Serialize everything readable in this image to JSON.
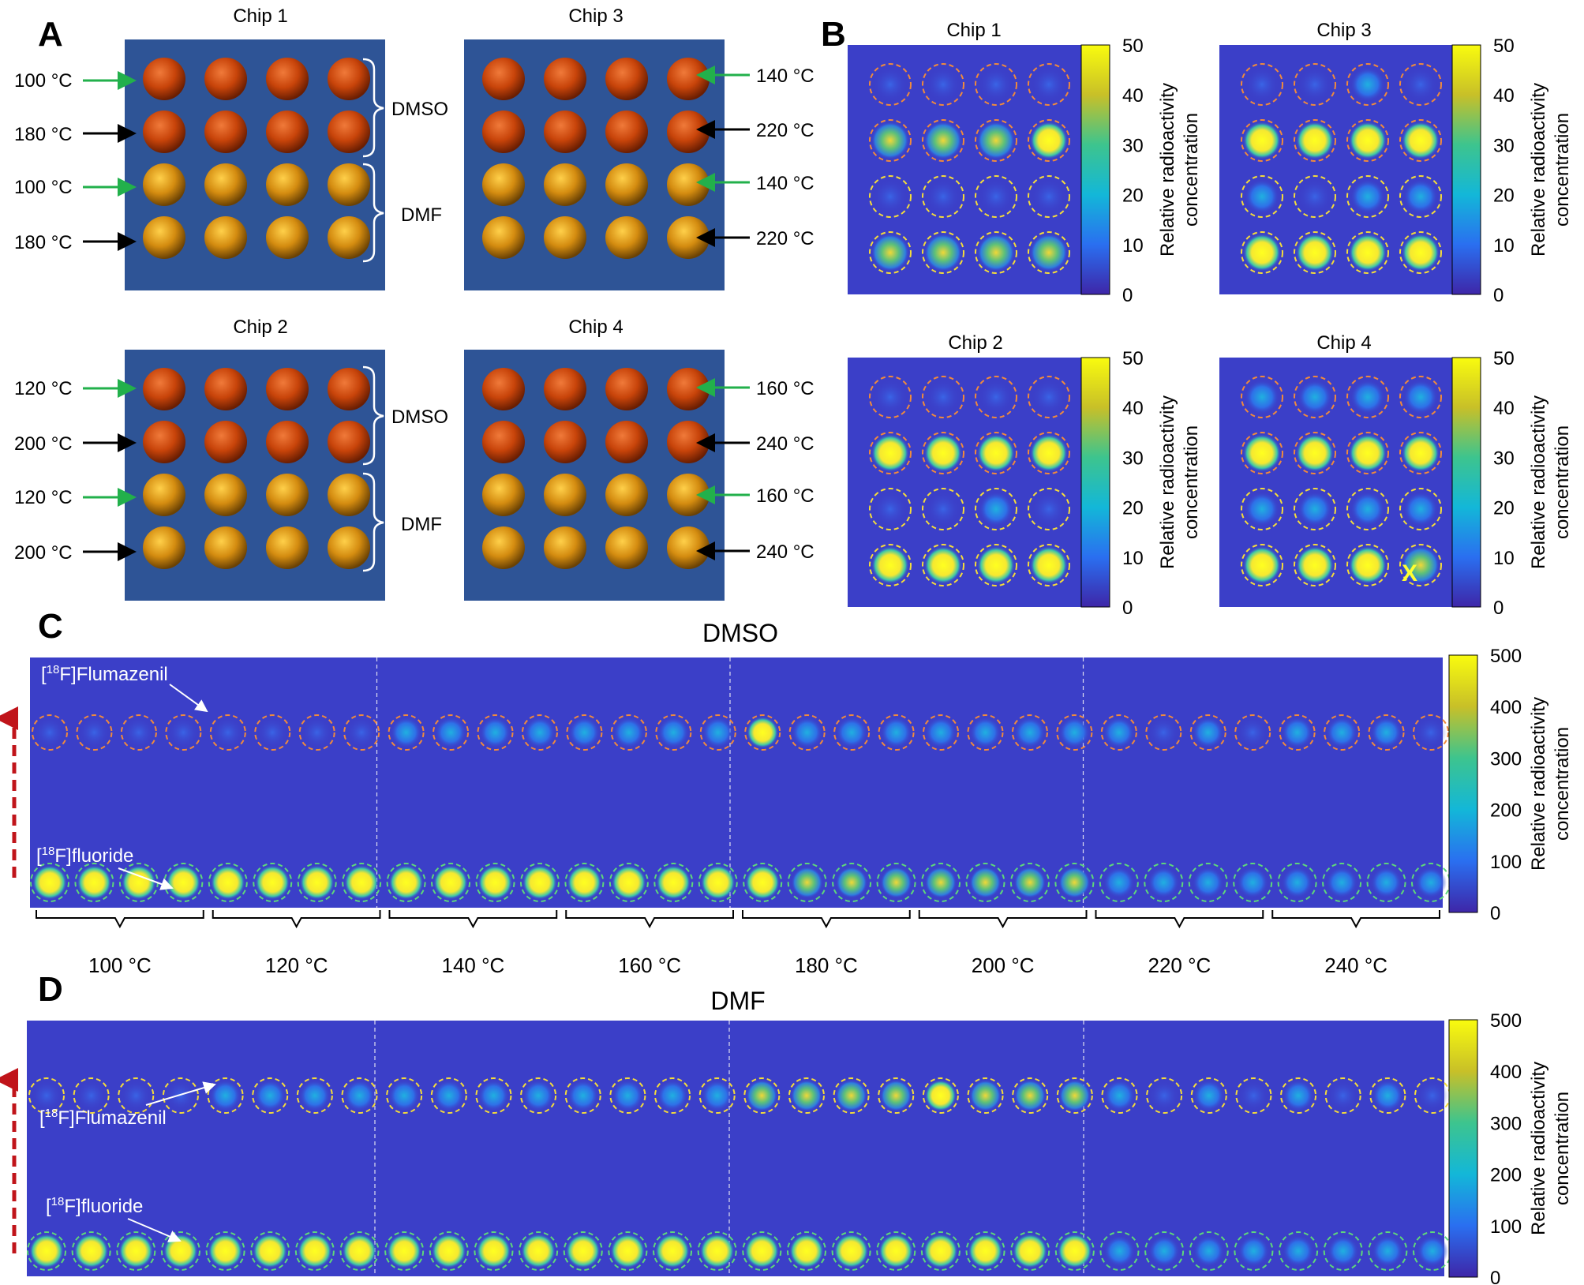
{
  "panel_letters": {
    "a": "A",
    "b": "B",
    "c": "C",
    "d": "D"
  },
  "chip_titles": [
    "Chip 1",
    "Chip 2",
    "Chip 3",
    "Chip 4"
  ],
  "solvents": {
    "dmso": "DMSO",
    "dmf": "DMF"
  },
  "panel_a": {
    "chip1_temps": [
      "100 °C",
      "180 °C",
      "100 °C",
      "180 °C"
    ],
    "chip2_temps": [
      "120 °C",
      "200 °C",
      "120 °C",
      "200 °C"
    ],
    "chip3_temps": [
      "140 °C",
      "220 °C",
      "140 °C",
      "220 °C"
    ],
    "chip4_temps": [
      "160 °C",
      "240 °C",
      "160 °C",
      "240 °C"
    ]
  },
  "panel_b": {
    "colorbar_ticks": [
      "50",
      "40",
      "30",
      "20",
      "10",
      "0"
    ],
    "colorbar_label_line1": "Relative radioactivity",
    "colorbar_label_line2": "concentration",
    "chip4_mark": "X"
  },
  "panel_c": {
    "title": "DMSO",
    "flumazenil_label": "[18F]Flumazenil",
    "fluoride_label": "[18F]fluoride",
    "temps": [
      "100 °C",
      "120 °C",
      "140 °C",
      "160 °C",
      "180 °C",
      "200 °C",
      "220 °C",
      "240 °C"
    ],
    "colorbar_ticks": [
      "500",
      "400",
      "300",
      "200",
      "100",
      "0"
    ]
  },
  "panel_d": {
    "title": "DMF",
    "flumazenil_label": "[18F]Flumazenil",
    "fluoride_label": "[18F]fluoride",
    "colorbar_ticks": [
      "500",
      "400",
      "300",
      "200",
      "100",
      "0"
    ]
  },
  "colors": {
    "chip_bg": "#2e5496",
    "dmso_well": "#c8440a",
    "dmf_well": "#d48c10",
    "heat_bg": "#3b3fc8",
    "orange_outline": "#f08a3c",
    "yellow_outline": "#f5dc3a",
    "green_outline": "#5ed87a",
    "green_arrow": "#22b04b",
    "red_arrow": "#c0141a"
  }
}
